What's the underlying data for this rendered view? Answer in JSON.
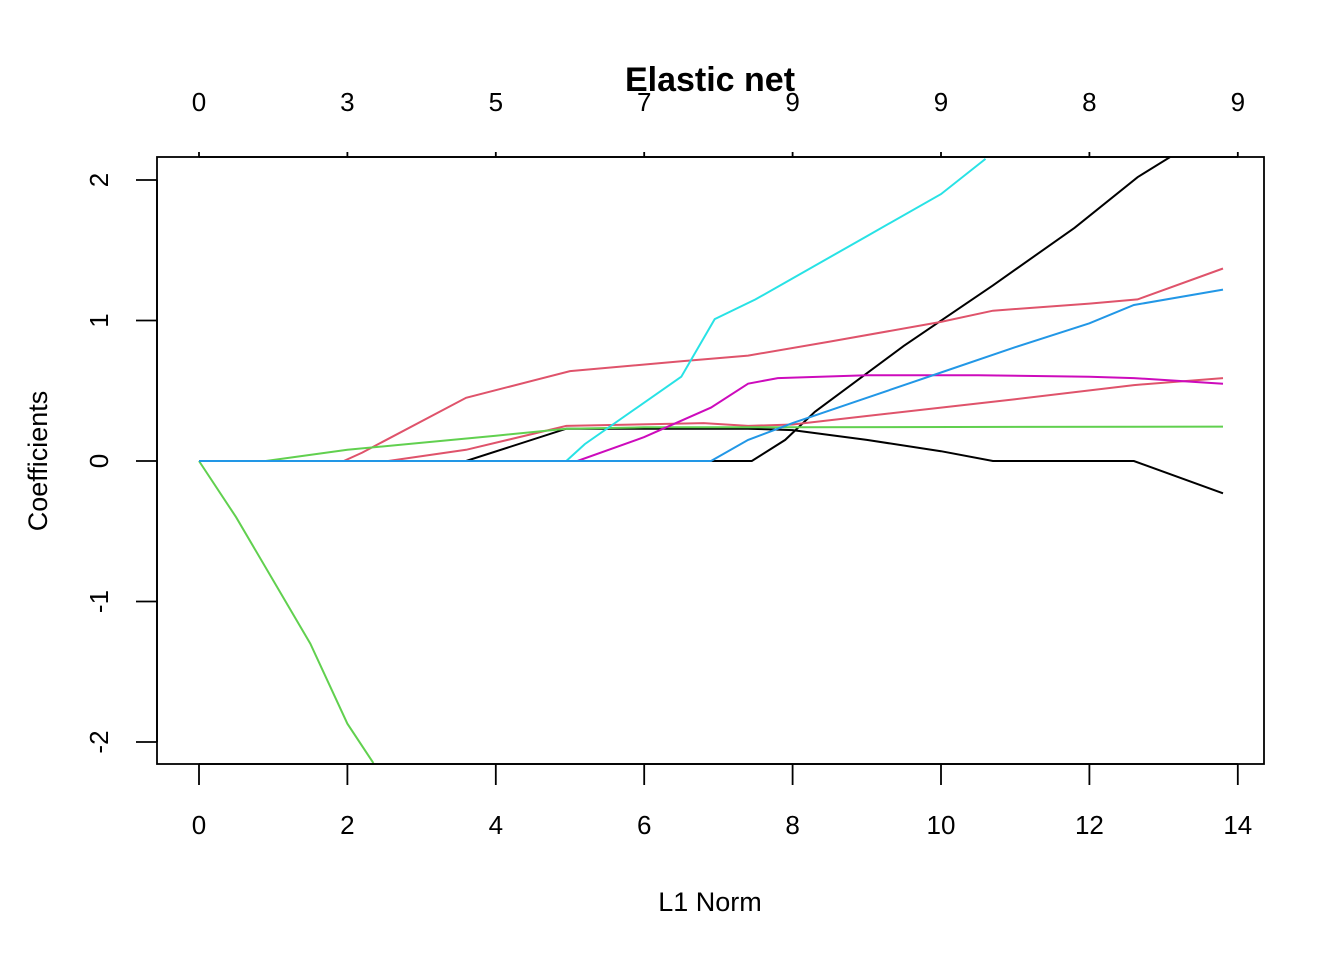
{
  "chart_data": {
    "type": "line",
    "title": "Elastic net",
    "xlabel": "L1 Norm",
    "ylabel": "Coefficients",
    "xlim": [
      0,
      14
    ],
    "ylim": [
      -2.15,
      2.15
    ],
    "x_ticks": [
      "0",
      "2",
      "4",
      "6",
      "8",
      "10",
      "12",
      "14"
    ],
    "y_ticks": [
      "-2",
      "-1",
      "0",
      "1",
      "2"
    ],
    "top_axis": {
      "positions": [
        0,
        2,
        4,
        6,
        8,
        10,
        12,
        14
      ],
      "labels": [
        "0",
        "3",
        "5",
        "7",
        "9",
        "9",
        "8",
        "9"
      ]
    },
    "grid": false,
    "legend": "none",
    "series": [
      {
        "color": "#000000",
        "points": [
          [
            0,
            0
          ],
          [
            3.6,
            0
          ],
          [
            4.95,
            0.23
          ],
          [
            7.4,
            0.23
          ],
          [
            8.0,
            0.22
          ],
          [
            9.0,
            0.15
          ],
          [
            10.0,
            0.07
          ],
          [
            10.7,
            0.0
          ],
          [
            12.6,
            0.0
          ],
          [
            13.8,
            -0.23
          ]
        ]
      },
      {
        "color": "#000000",
        "points": [
          [
            0,
            0
          ],
          [
            7.45,
            0
          ],
          [
            7.9,
            0.15
          ],
          [
            8.3,
            0.35
          ],
          [
            9.5,
            0.82
          ],
          [
            10.7,
            1.25
          ],
          [
            11.8,
            1.66
          ],
          [
            12.65,
            2.02
          ],
          [
            13.2,
            2.2
          ]
        ]
      },
      {
        "color": "#DF536B",
        "points": [
          [
            0,
            0
          ],
          [
            1.95,
            0
          ],
          [
            2.2,
            0.06
          ],
          [
            3.6,
            0.45
          ],
          [
            5.0,
            0.64
          ],
          [
            6.5,
            0.71
          ],
          [
            7.4,
            0.75
          ],
          [
            8.5,
            0.85
          ],
          [
            10.0,
            0.99
          ],
          [
            10.7,
            1.07
          ],
          [
            12.0,
            1.12
          ],
          [
            12.65,
            1.15
          ],
          [
            13.8,
            1.37
          ]
        ]
      },
      {
        "color": "#DF536B",
        "points": [
          [
            0,
            0
          ],
          [
            2.55,
            0
          ],
          [
            3.6,
            0.08
          ],
          [
            4.95,
            0.25
          ],
          [
            6.8,
            0.27
          ],
          [
            7.4,
            0.25
          ],
          [
            8.0,
            0.26
          ],
          [
            9.0,
            0.32
          ],
          [
            10.0,
            0.38
          ],
          [
            11.0,
            0.44
          ],
          [
            12.6,
            0.54
          ],
          [
            13.8,
            0.59
          ]
        ]
      },
      {
        "color": "#61D04F",
        "points": [
          [
            0,
            0
          ],
          [
            0.9,
            0
          ],
          [
            2.0,
            0.08
          ],
          [
            3.0,
            0.13
          ],
          [
            4.0,
            0.18
          ],
          [
            4.95,
            0.23
          ],
          [
            6.0,
            0.24
          ],
          [
            8.0,
            0.24
          ],
          [
            13.8,
            0.245
          ]
        ]
      },
      {
        "color": "#61D04F",
        "points": [
          [
            0,
            0
          ],
          [
            0.5,
            -0.4
          ],
          [
            1.0,
            -0.85
          ],
          [
            1.5,
            -1.3
          ],
          [
            2.0,
            -1.87
          ],
          [
            2.35,
            -2.15
          ]
        ]
      },
      {
        "color": "#28E2E5",
        "points": [
          [
            0,
            0
          ],
          [
            4.95,
            0
          ],
          [
            5.2,
            0.12
          ],
          [
            6.5,
            0.6
          ],
          [
            6.95,
            1.01
          ],
          [
            7.5,
            1.15
          ],
          [
            8.0,
            1.3
          ],
          [
            9.0,
            1.6
          ],
          [
            10.0,
            1.9
          ],
          [
            10.6,
            2.15
          ]
        ]
      },
      {
        "color": "#CD0BBC",
        "points": [
          [
            0,
            0
          ],
          [
            5.1,
            0
          ],
          [
            6.0,
            0.17
          ],
          [
            6.9,
            0.38
          ],
          [
            7.4,
            0.55
          ],
          [
            7.8,
            0.59
          ],
          [
            9.0,
            0.61
          ],
          [
            10.5,
            0.61
          ],
          [
            12.0,
            0.6
          ],
          [
            12.6,
            0.59
          ],
          [
            13.8,
            0.55
          ]
        ]
      },
      {
        "color": "#2297E6",
        "points": [
          [
            0,
            0
          ],
          [
            6.9,
            0
          ],
          [
            7.4,
            0.15
          ],
          [
            8.0,
            0.27
          ],
          [
            9.0,
            0.45
          ],
          [
            10.0,
            0.63
          ],
          [
            11.0,
            0.81
          ],
          [
            12.0,
            0.98
          ],
          [
            12.6,
            1.11
          ],
          [
            13.8,
            1.22
          ]
        ]
      }
    ]
  }
}
